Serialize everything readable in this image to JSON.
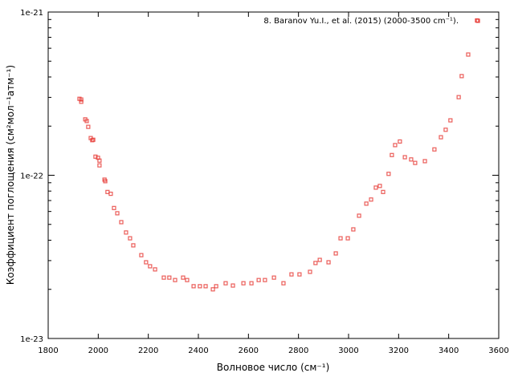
{
  "chart_data": {
    "type": "scatter",
    "title": "",
    "xlabel": "Волновое число (см⁻¹)",
    "ylabel": "Коэффициент поглощения (см²мол⁻¹атм⁻¹)",
    "xlim": [
      1800,
      3600
    ],
    "ylim": [
      1e-23,
      1e-21
    ],
    "yscale": "log",
    "xticks": [
      "1800",
      "2000",
      "2200",
      "2400",
      "2600",
      "2800",
      "3000",
      "3200",
      "3400",
      "3600"
    ],
    "yticks": [
      {
        "value": 1e-21,
        "label": "1e-21"
      },
      {
        "value": 1e-22,
        "label": "1e-22"
      },
      {
        "value": 1e-23,
        "label": "1e-23"
      }
    ],
    "legend_position": "top-right",
    "series": [
      {
        "name": "8. Baranov Yu.I., et al. (2015) (2000-3500 cm⁻¹).",
        "color": "#e8413c",
        "marker": "square",
        "points": [
          [
            1925,
            2.94e-22
          ],
          [
            1932,
            2.82e-22
          ],
          [
            1932,
            2.91e-22
          ],
          [
            1948,
            2.2e-22
          ],
          [
            1954,
            2.15e-22
          ],
          [
            1960,
            1.98e-22
          ],
          [
            1970,
            1.69e-22
          ],
          [
            1976,
            1.64e-22
          ],
          [
            1980,
            1.65e-22
          ],
          [
            1989,
            1.3e-22
          ],
          [
            1999,
            1.28e-22
          ],
          [
            2005,
            1.23e-22
          ],
          [
            2005,
            1.15e-22
          ],
          [
            2025,
            9.4e-23
          ],
          [
            2028,
            9.2e-23
          ],
          [
            2037,
            7.9e-23
          ],
          [
            2050,
            7.7e-23
          ],
          [
            2063,
            6.3e-23
          ],
          [
            2076,
            5.85e-23
          ],
          [
            2092,
            5.16e-23
          ],
          [
            2111,
            4.46e-23
          ],
          [
            2127,
            4.11e-23
          ],
          [
            2140,
            3.72e-23
          ],
          [
            2172,
            3.24e-23
          ],
          [
            2191,
            2.93e-23
          ],
          [
            2207,
            2.77e-23
          ],
          [
            2227,
            2.65e-23
          ],
          [
            2262,
            2.36e-23
          ],
          [
            2284,
            2.36e-23
          ],
          [
            2307,
            2.28e-23
          ],
          [
            2339,
            2.36e-23
          ],
          [
            2355,
            2.28e-23
          ],
          [
            2381,
            2.09e-23
          ],
          [
            2406,
            2.09e-23
          ],
          [
            2429,
            2.09e-23
          ],
          [
            2458,
            2e-23
          ],
          [
            2471,
            2.09e-23
          ],
          [
            2509,
            2.18e-23
          ],
          [
            2538,
            2.11e-23
          ],
          [
            2580,
            2.18e-23
          ],
          [
            2612,
            2.18e-23
          ],
          [
            2641,
            2.28e-23
          ],
          [
            2666,
            2.28e-23
          ],
          [
            2702,
            2.36e-23
          ],
          [
            2740,
            2.18e-23
          ],
          [
            2772,
            2.47e-23
          ],
          [
            2804,
            2.47e-23
          ],
          [
            2846,
            2.56e-23
          ],
          [
            2868,
            2.9e-23
          ],
          [
            2885,
            3.03e-23
          ],
          [
            2920,
            2.93e-23
          ],
          [
            2949,
            3.32e-23
          ],
          [
            2968,
            4.11e-23
          ],
          [
            2997,
            4.11e-23
          ],
          [
            3019,
            4.66e-23
          ],
          [
            3042,
            5.65e-23
          ],
          [
            3071,
            6.7e-23
          ],
          [
            3090,
            7.1e-23
          ],
          [
            3109,
            8.4e-23
          ],
          [
            3125,
            8.6e-23
          ],
          [
            3138,
            7.9e-23
          ],
          [
            3160,
            1.02e-22
          ],
          [
            3173,
            1.33e-22
          ],
          [
            3186,
            1.53e-22
          ],
          [
            3205,
            1.61e-22
          ],
          [
            3225,
            1.29e-22
          ],
          [
            3250,
            1.25e-22
          ],
          [
            3266,
            1.19e-22
          ],
          [
            3305,
            1.22e-22
          ],
          [
            3343,
            1.44e-22
          ],
          [
            3369,
            1.71e-22
          ],
          [
            3388,
            1.9e-22
          ],
          [
            3407,
            2.17e-22
          ],
          [
            3440,
            3.01e-22
          ],
          [
            3452,
            4.05e-22
          ],
          [
            3478,
            5.49e-22
          ],
          [
            3517,
            8.83e-22
          ]
        ]
      }
    ]
  }
}
